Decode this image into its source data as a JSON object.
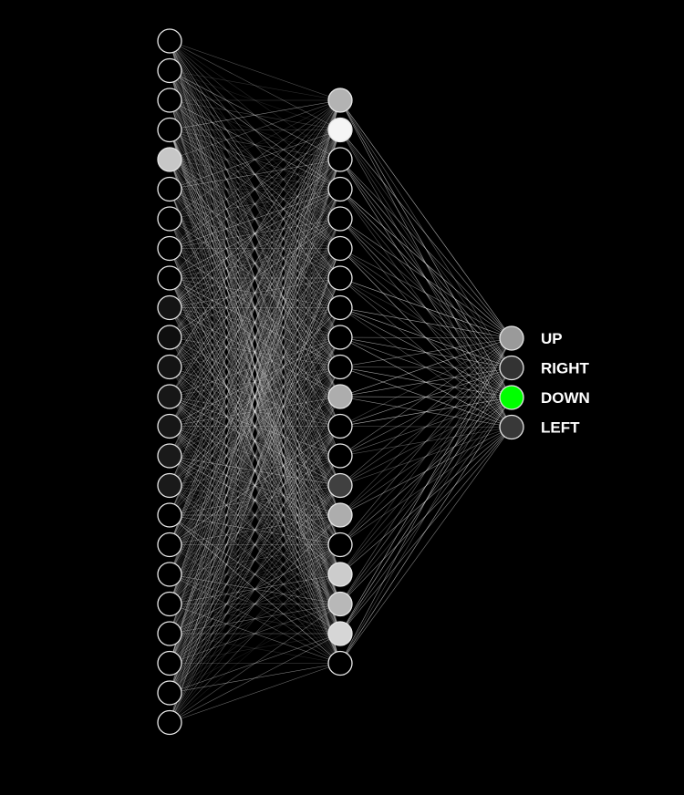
{
  "network": {
    "background": "#000000",
    "node_stroke": "#e8e8e8",
    "edge_color": "#ffffff",
    "input_layer": {
      "node_count": 24,
      "activations": [
        0,
        0,
        0,
        0,
        0.78,
        0,
        0,
        0,
        0,
        0.08,
        0.06,
        0.08,
        0.09,
        0.09,
        0.1,
        0.1,
        0,
        0,
        0,
        0,
        0,
        0,
        0,
        0
      ]
    },
    "hidden_layer": {
      "node_count": 20,
      "activations": [
        0.7,
        0.96,
        0,
        0,
        0,
        0,
        0,
        0,
        0,
        0,
        0.68,
        0,
        0,
        0.25,
        0.68,
        0,
        0.8,
        0.72,
        0.84,
        0
      ]
    },
    "output_layer": {
      "nodes": [
        {
          "label": "UP",
          "activation": 0.6,
          "color": "#9a9a9a"
        },
        {
          "label": "RIGHT",
          "activation": 0.2,
          "color": "#333333"
        },
        {
          "label": "DOWN",
          "activation": 1.0,
          "color": "#00ff00",
          "selected": true
        },
        {
          "label": "LEFT",
          "activation": 0.22,
          "color": "#383838"
        }
      ]
    }
  }
}
